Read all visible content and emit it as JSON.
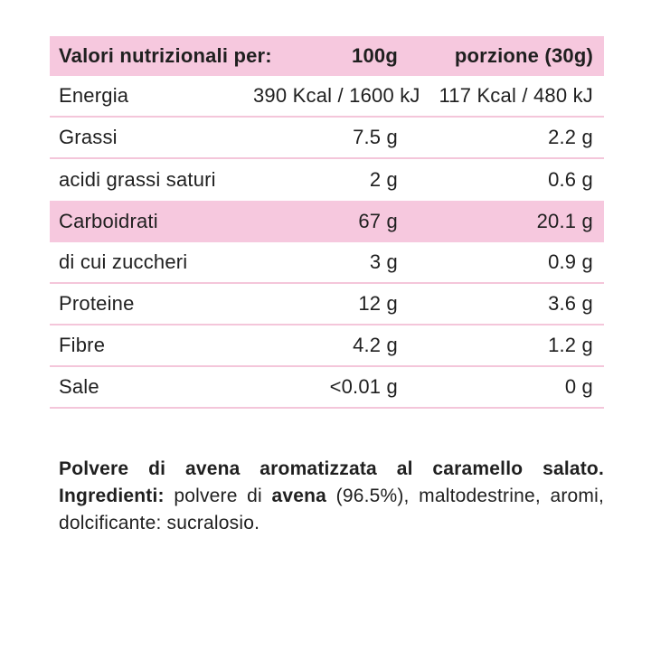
{
  "table": {
    "header": {
      "col1": "Valori nutrizionali per:",
      "col2": "100g",
      "col3": "porzione (30g)"
    },
    "rows": [
      {
        "label": "Energia",
        "per100g": "390 Kcal / 1600 kJ",
        "portion": "117 Kcal / 480 kJ",
        "highlight": false
      },
      {
        "label": "Grassi",
        "per100g": "7.5 g",
        "portion": "2.2 g",
        "highlight": false
      },
      {
        "label": "acidi grassi saturi",
        "per100g": "2 g",
        "portion": "0.6 g",
        "highlight": false
      },
      {
        "label": "Carboidrati",
        "per100g": "67 g",
        "portion": "20.1 g",
        "highlight": true
      },
      {
        "label": "di cui zuccheri",
        "per100g": "3 g",
        "portion": "0.9 g",
        "highlight": false
      },
      {
        "label": "Proteine",
        "per100g": "12 g",
        "portion": "3.6 g",
        "highlight": false
      },
      {
        "label": "Fibre",
        "per100g": "4.2 g",
        "portion": "1.2 g",
        "highlight": false
      },
      {
        "label": "Sale",
        "per100g": "<0.01 g",
        "portion": "0 g",
        "highlight": false
      }
    ]
  },
  "description": {
    "product_sentence": "Polvere di avena aromatizzata al caramello salato.",
    "ingredients_label": "Ingredienti:",
    "ingredients_pre": " polvere di ",
    "ingredient_bold": "avena",
    "ingredients_post": " (96.5%), maltodestrine, aromi, dolcificante: sucralosio."
  },
  "colors": {
    "band_pink": "#f6c8de",
    "divider_pink": "#f4c6da",
    "text": "#1f1f1f",
    "background": "#ffffff"
  }
}
